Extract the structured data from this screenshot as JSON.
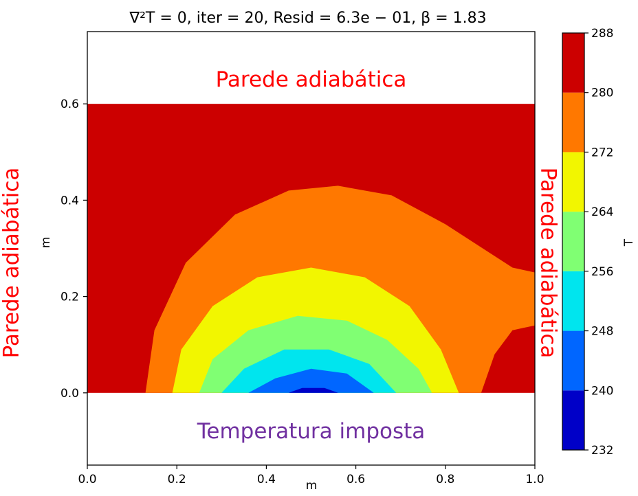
{
  "chart_data": {
    "type": "heatmap",
    "title": "∇²T = 0, iter = 20, Resid = 6.3e − 01, β = 1.83",
    "xlabel": "m",
    "ylabel": "m",
    "colorbar_label": "T",
    "xlim": [
      0.0,
      1.0
    ],
    "ylim": [
      -0.15,
      0.75
    ],
    "domain": {
      "x": [
        0.0,
        1.0
      ],
      "y": [
        0.0,
        0.6
      ]
    },
    "x_ticks": [
      "0.0",
      "0.2",
      "0.4",
      "0.6",
      "0.8",
      "1.0"
    ],
    "y_ticks": [
      "0.0",
      "0.2",
      "0.4",
      "0.6"
    ],
    "colorbar_ticks": [
      "232",
      "240",
      "248",
      "256",
      "264",
      "272",
      "280",
      "288"
    ],
    "levels": [
      {
        "min": 232,
        "max": 240,
        "color": "#0000c8"
      },
      {
        "min": 240,
        "max": 248,
        "color": "#0066ff"
      },
      {
        "min": 248,
        "max": 256,
        "color": "#00e5ee"
      },
      {
        "min": 256,
        "max": 264,
        "color": "#80ff73"
      },
      {
        "min": 264,
        "max": 272,
        "color": "#f2f600"
      },
      {
        "min": 272,
        "max": 280,
        "color": "#ff7800"
      },
      {
        "min": 280,
        "max": 288,
        "color": "#cc0000"
      }
    ],
    "contour_boundaries": [
      {
        "level": 280,
        "points": [
          [
            0.13,
            0.0
          ],
          [
            0.15,
            0.13
          ],
          [
            0.22,
            0.27
          ],
          [
            0.33,
            0.37
          ],
          [
            0.45,
            0.42
          ],
          [
            0.56,
            0.43
          ],
          [
            0.68,
            0.41
          ],
          [
            0.8,
            0.35
          ],
          [
            0.9,
            0.29
          ],
          [
            0.95,
            0.26
          ],
          [
            1.0,
            0.25
          ],
          [
            1.0,
            0.14
          ],
          [
            0.95,
            0.13
          ],
          [
            0.91,
            0.08
          ],
          [
            0.88,
            0.0
          ]
        ]
      },
      {
        "level": 272,
        "points": [
          [
            0.19,
            0.0
          ],
          [
            0.21,
            0.09
          ],
          [
            0.28,
            0.18
          ],
          [
            0.38,
            0.24
          ],
          [
            0.5,
            0.26
          ],
          [
            0.62,
            0.24
          ],
          [
            0.72,
            0.18
          ],
          [
            0.79,
            0.09
          ],
          [
            0.83,
            0.0
          ]
        ]
      },
      {
        "level": 264,
        "points": [
          [
            0.25,
            0.0
          ],
          [
            0.28,
            0.07
          ],
          [
            0.36,
            0.13
          ],
          [
            0.47,
            0.16
          ],
          [
            0.58,
            0.15
          ],
          [
            0.67,
            0.11
          ],
          [
            0.74,
            0.05
          ],
          [
            0.77,
            0.0
          ]
        ]
      },
      {
        "level": 256,
        "points": [
          [
            0.3,
            0.0
          ],
          [
            0.35,
            0.05
          ],
          [
            0.44,
            0.09
          ],
          [
            0.54,
            0.09
          ],
          [
            0.63,
            0.06
          ],
          [
            0.69,
            0.0
          ]
        ]
      },
      {
        "level": 248,
        "points": [
          [
            0.36,
            0.0
          ],
          [
            0.42,
            0.03
          ],
          [
            0.5,
            0.05
          ],
          [
            0.58,
            0.04
          ],
          [
            0.64,
            0.0
          ]
        ]
      },
      {
        "level": 240,
        "points": [
          [
            0.45,
            0.0
          ],
          [
            0.48,
            0.01
          ],
          [
            0.53,
            0.01
          ],
          [
            0.56,
            0.0
          ]
        ]
      }
    ],
    "annotations": [
      {
        "text": "Parede adiabática",
        "color": "#ff0000",
        "x": 0.5,
        "y": 0.65,
        "rotation": 0
      },
      {
        "text": "Temperatura imposta",
        "color": "#7030a0",
        "x": 0.5,
        "y": -0.08,
        "rotation": 0
      },
      {
        "text": "Parede adiabática",
        "color": "#ff0000",
        "x": -0.17,
        "y": 0.27,
        "rotation": -90
      },
      {
        "text": "Parede adiabática",
        "color": "#ff0000",
        "x": 1.03,
        "y": 0.27,
        "rotation": 90
      }
    ]
  }
}
